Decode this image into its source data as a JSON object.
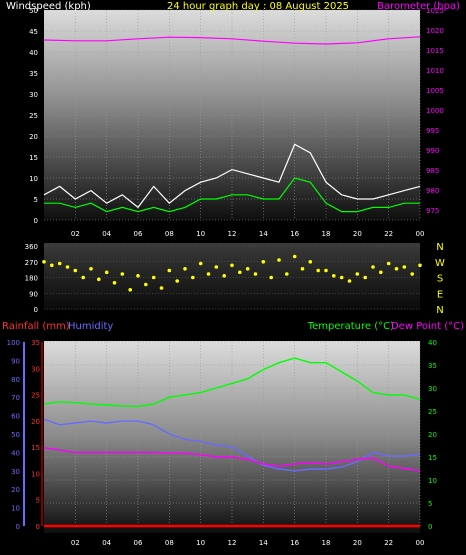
{
  "colors": {
    "background": "#000000",
    "wind_speed": "#ffffff",
    "wind_avg": "#00ff00",
    "barometer": "#ff00ff",
    "wind_dir": "#ffff00",
    "rainfall": "#ff0000",
    "humidity": "#6a6aff",
    "temperature": "#00ff00",
    "dew_point": "#ff00ff",
    "title": "#ffff00",
    "grid": "#9a9a9a"
  },
  "chart_data": [
    {
      "type": "line",
      "title": "24 hour graph day : 08 August 2025",
      "ylabel": "Windspeed (kph)",
      "y2label": "Barometer (hpa)",
      "x_ticks": [
        "02",
        "04",
        "06",
        "08",
        "10",
        "12",
        "14",
        "16",
        "18",
        "20",
        "22",
        "00"
      ],
      "ylim": [
        0,
        50
      ],
      "y_ticks": [
        0,
        5,
        10,
        15,
        20,
        25,
        30,
        35,
        40,
        45,
        50
      ],
      "y2lim": [
        972.5,
        1025
      ],
      "y2_ticks": [
        975,
        980,
        985,
        990,
        995,
        1000,
        1005,
        1010,
        1015,
        1020,
        1025
      ],
      "series": [
        {
          "name": "Wind Gust",
          "color": "#ffffff",
          "x": [
            0,
            1,
            2,
            3,
            4,
            5,
            6,
            7,
            8,
            9,
            10,
            11,
            12,
            13,
            14,
            15,
            16,
            17,
            18,
            19,
            20,
            21,
            22,
            23,
            24
          ],
          "values": [
            6,
            8,
            5,
            7,
            4,
            6,
            3,
            8,
            4,
            7,
            9,
            10,
            12,
            11,
            10,
            9,
            18,
            16,
            9,
            6,
            5,
            5,
            6,
            7,
            8
          ]
        },
        {
          "name": "Wind Avg",
          "color": "#00ff00",
          "x": [
            0,
            1,
            2,
            3,
            4,
            5,
            6,
            7,
            8,
            9,
            10,
            11,
            12,
            13,
            14,
            15,
            16,
            17,
            18,
            19,
            20,
            21,
            22,
            23,
            24
          ],
          "values": [
            4,
            4,
            3,
            4,
            2,
            3,
            2,
            3,
            2,
            3,
            5,
            5,
            6,
            6,
            5,
            5,
            10,
            9,
            4,
            2,
            2,
            3,
            3,
            4,
            4
          ]
        },
        {
          "name": "Barometer",
          "color": "#ff00ff",
          "axis": "right",
          "x": [
            0,
            2,
            4,
            6,
            8,
            10,
            12,
            14,
            16,
            18,
            20,
            22,
            24
          ],
          "values": [
            1017.5,
            1017.3,
            1017.3,
            1017.8,
            1018.2,
            1018.1,
            1017.8,
            1017.2,
            1016.7,
            1016.5,
            1016.8,
            1017.8,
            1018.3
          ]
        }
      ]
    },
    {
      "type": "scatter",
      "ylim": [
        0,
        360
      ],
      "y_ticks": [
        0,
        90,
        180,
        270,
        360
      ],
      "compass": [
        "N",
        "W",
        "S",
        "E",
        "N"
      ],
      "x": [
        0,
        0.5,
        1,
        1.5,
        2,
        2.5,
        3,
        3.5,
        4,
        4.5,
        5,
        5.5,
        6,
        6.5,
        7,
        7.5,
        8,
        8.5,
        9,
        9.5,
        10,
        10.5,
        11,
        11.5,
        12,
        12.5,
        13,
        13.5,
        14,
        14.5,
        15,
        15.5,
        16,
        16.5,
        17,
        17.5,
        18,
        18.5,
        19,
        19.5,
        20,
        20.5,
        21,
        21.5,
        22,
        22.5,
        23,
        23.5,
        24
      ],
      "values": [
        270,
        250,
        260,
        240,
        220,
        180,
        230,
        170,
        210,
        150,
        200,
        110,
        190,
        140,
        180,
        120,
        220,
        160,
        230,
        180,
        260,
        200,
        240,
        190,
        250,
        210,
        230,
        200,
        270,
        180,
        280,
        200,
        300,
        230,
        270,
        220,
        220,
        190,
        180,
        160,
        200,
        180,
        240,
        210,
        260,
        230,
        240,
        200,
        250
      ]
    },
    {
      "type": "line",
      "ylabel": "Rainfall (mm)",
      "ylabel2": "Humidity",
      "y2label": "Temperature (°C)",
      "y2label2": "Dew Point (°C)",
      "x_ticks": [
        "02",
        "04",
        "06",
        "08",
        "10",
        "12",
        "14",
        "16",
        "18",
        "20",
        "22",
        "00"
      ],
      "rain_ylim": [
        0,
        35
      ],
      "rain_ticks": [
        0,
        5,
        10,
        15,
        20,
        25,
        30,
        35
      ],
      "hum_ylim": [
        0,
        100
      ],
      "hum_ticks": [
        0,
        10,
        20,
        30,
        40,
        50,
        60,
        70,
        80,
        90,
        100
      ],
      "temp_ylim": [
        0,
        40
      ],
      "temp_ticks": [
        0,
        5,
        10,
        15,
        20,
        25,
        30,
        35,
        40
      ],
      "series": [
        {
          "name": "Temperature",
          "color": "#00ff00",
          "axis": "temp",
          "x": [
            0,
            1,
            2,
            3,
            4,
            5,
            6,
            7,
            8,
            9,
            10,
            11,
            12,
            13,
            14,
            15,
            16,
            17,
            18,
            19,
            20,
            21,
            22,
            23,
            24
          ],
          "values": [
            26.5,
            27,
            26.8,
            26.5,
            26.3,
            26.1,
            26,
            26.5,
            28,
            28.5,
            29,
            30,
            31,
            32,
            34,
            35.5,
            36.5,
            35.5,
            35.5,
            33.5,
            31.5,
            29,
            28.5,
            28.5,
            27.5
          ]
        },
        {
          "name": "Humidity",
          "color": "#6a6aff",
          "axis": "humidity",
          "x": [
            0,
            1,
            2,
            3,
            4,
            5,
            6,
            7,
            8,
            9,
            10,
            11,
            12,
            13,
            14,
            15,
            16,
            17,
            18,
            19,
            20,
            21,
            22,
            23,
            24
          ],
          "values": [
            58,
            55,
            56,
            57,
            56,
            57,
            57,
            55,
            50,
            47,
            46,
            44,
            43,
            38,
            33,
            31,
            30,
            31,
            31,
            32,
            35,
            40,
            38,
            38,
            39
          ]
        },
        {
          "name": "Dew Point",
          "color": "#ff00ff",
          "axis": "temp",
          "x": [
            0,
            1,
            2,
            3,
            4,
            5,
            6,
            7,
            8,
            9,
            10,
            11,
            12,
            13,
            14,
            15,
            16,
            17,
            18,
            19,
            20,
            21,
            22,
            23,
            24
          ],
          "values": [
            17,
            16.5,
            16,
            16,
            16,
            16,
            16,
            16,
            15.8,
            15.8,
            15.5,
            15,
            15,
            14.5,
            13.5,
            13,
            13.5,
            13.8,
            13.5,
            14,
            14.5,
            14.8,
            13,
            12.5,
            12
          ]
        },
        {
          "name": "Rainfall",
          "color": "#ff0000",
          "axis": "rain",
          "x": [
            0,
            24
          ],
          "values": [
            0,
            0
          ]
        }
      ]
    }
  ]
}
